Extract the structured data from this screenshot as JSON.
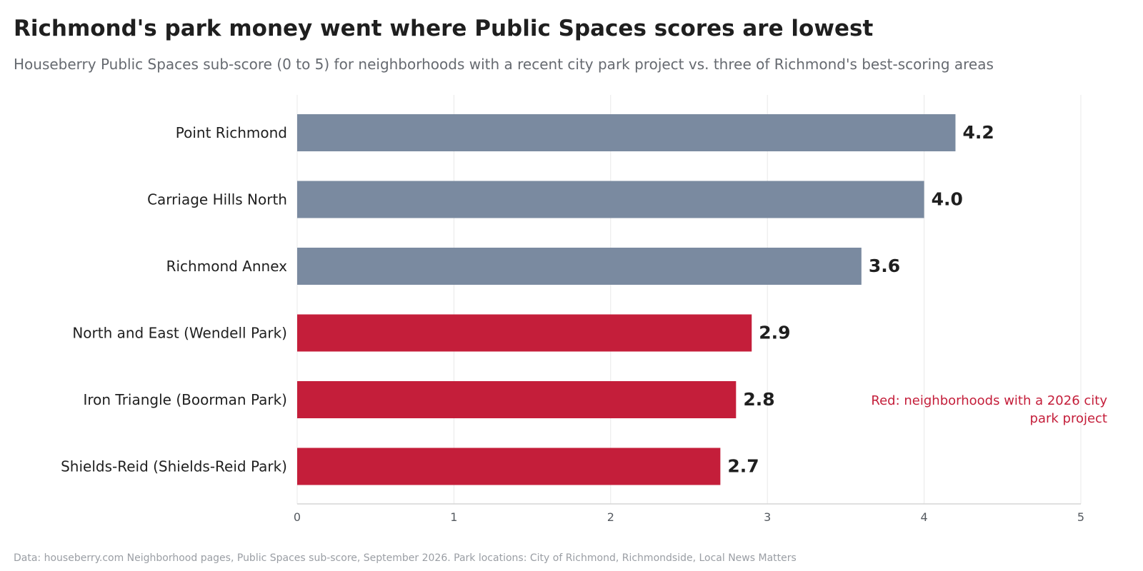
{
  "title": "Richmond's park money went where Public Spaces scores are lowest",
  "subtitle": "Houseberry Public Spaces sub-score (0 to 5) for neighborhoods with a recent city park project vs. three of Richmond's best-scoring areas",
  "source": "Data: houseberry.com Neighborhood pages, Public Spaces sub-score, September 2026. Park locations: City of Richmond, Richmondside, Local News Matters",
  "annotation": "Red: neighborhoods with a 2026 city park project",
  "colors": {
    "comparison": "#7a8aa0",
    "park_project": "#c41e3a",
    "text": "#1f1f1f",
    "grid": "#e8e8e8",
    "axis": "#d6d6d6"
  },
  "chart_data": {
    "type": "bar",
    "orientation": "horizontal",
    "title": "Richmond's park money went where Public Spaces scores are lowest",
    "subtitle": "Houseberry Public Spaces sub-score (0 to 5) for neighborhoods with a recent city park project vs. three of Richmond's best-scoring areas",
    "categories": [
      "Point Richmond",
      "Carriage Hills North",
      "Richmond Annex",
      "North and East (Wendell Park)",
      "Iron Triangle (Boorman Park)",
      "Shields-Reid (Shields-Reid Park)"
    ],
    "values": [
      4.2,
      4.0,
      3.6,
      2.9,
      2.8,
      2.7
    ],
    "value_labels": [
      "4.2",
      "4.0",
      "3.6",
      "2.9",
      "2.8",
      "2.7"
    ],
    "groups": [
      "comparison",
      "comparison",
      "comparison",
      "park_project",
      "park_project",
      "park_project"
    ],
    "xlim": [
      0,
      5
    ],
    "xticks": [
      0,
      1,
      2,
      3,
      4,
      5
    ],
    "xlabel": "",
    "ylabel": "",
    "grid": "vertical"
  }
}
